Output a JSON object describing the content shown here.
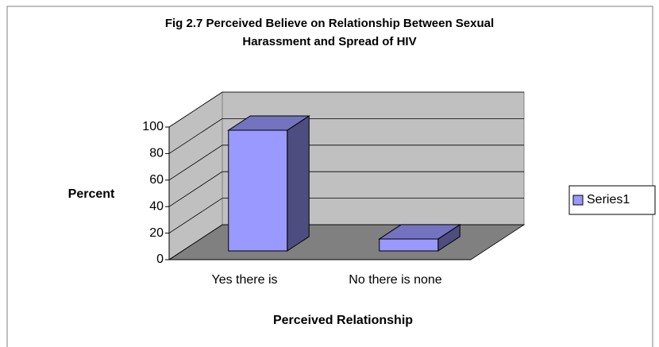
{
  "chart_data": {
    "type": "bar3d",
    "title": "Fig 2.7 Perceived Believe on Relationship Between Sexual Harassment and Spread of HIV",
    "xlabel": "Perceived Relationship",
    "ylabel": "Percent",
    "categories": [
      "Yes there is",
      "No there is none"
    ],
    "series": [
      {
        "name": "Series1",
        "color": "#9999ff",
        "values": [
          91,
          9
        ]
      }
    ],
    "ylim": [
      0,
      100
    ],
    "yticks": [
      0,
      20,
      40,
      60,
      80,
      100
    ],
    "grid": true,
    "legend": "right"
  }
}
